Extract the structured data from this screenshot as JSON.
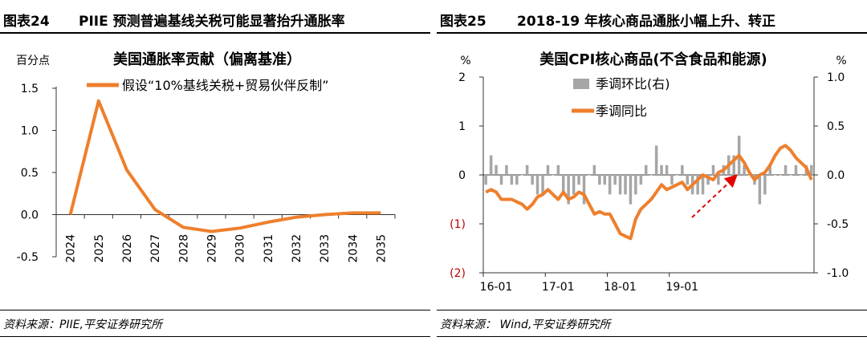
{
  "colors": {
    "line": "#ee7f2d",
    "bar": "#a6a6a6",
    "axis": "#333333",
    "negative_label": "#c00000",
    "arrow": "#e60000"
  },
  "figures": [
    {
      "label": "图表24",
      "title": "PIIE 预测普遍基线关税可能显著抬升通胀率",
      "source": "资料来源：PIIE,平安证券研究所"
    },
    {
      "label": "图表25",
      "title": "2018-19 年核心商品通胀小幅上升、转正",
      "source": "资料来源：   Wind,平安证券研究所"
    }
  ],
  "chart_data": [
    {
      "type": "line",
      "title": "美国通胀率贡献（偏离基准）",
      "ylabel": "百分点",
      "ylim": [
        -0.5,
        1.5
      ],
      "yticks": [
        "1.5",
        "1.0",
        "0.5",
        "0.0",
        "-0.5"
      ],
      "legend": "top-left",
      "categories": [
        "2024",
        "2025",
        "2026",
        "2027",
        "2028",
        "2029",
        "2030",
        "2031",
        "2032",
        "2033",
        "2034",
        "2035"
      ],
      "series": [
        {
          "name": "假设“10%基线关税+贸易伙伴反制”",
          "values": [
            0.0,
            1.35,
            0.53,
            0.06,
            -0.15,
            -0.2,
            -0.16,
            -0.09,
            -0.03,
            0.0,
            0.02,
            0.02
          ]
        }
      ]
    },
    {
      "type": "bar+line",
      "title": "美国CPI核心商品(不含食品和能源)",
      "ylabel_left": "%",
      "ylabel_right": "%",
      "ylim_left": [
        -2,
        2
      ],
      "ylim_right": [
        -1.0,
        1.0
      ],
      "yticks_left": [
        "2",
        "1",
        "0",
        "(1)",
        "(2)"
      ],
      "yticks_right": [
        "1.0",
        "0.5",
        "0.0",
        "-0.5",
        "-1.0"
      ],
      "xticks": [
        "16-01",
        "17-01",
        "18-01",
        "19-01"
      ],
      "legend": "top-center",
      "series": [
        {
          "name": "季调环比(右)",
          "type": "bar",
          "axis": "right",
          "values": [
            -0.1,
            0.2,
            0.1,
            -0.1,
            0.1,
            -0.1,
            -0.1,
            0.0,
            0.1,
            -0.1,
            -0.2,
            -0.2,
            0.1,
            0.0,
            0.1,
            -0.2,
            -0.3,
            -0.2,
            -0.1,
            -0.3,
            0.0,
            0.1,
            -0.1,
            -0.1,
            -0.2,
            -0.1,
            -0.2,
            -0.2,
            -0.3,
            -0.2,
            -0.1,
            0.1,
            0.0,
            0.3,
            0.1,
            0.1,
            -0.1,
            0.0,
            0.1,
            -0.1,
            -0.2,
            -0.2,
            -0.2,
            -0.1,
            0.1,
            -0.1,
            0.1,
            0.2,
            0.2,
            0.4,
            0.1,
            0.0,
            -0.1,
            -0.3,
            -0.2,
            0.1,
            0.0,
            0.0,
            0.1,
            0.0,
            0.1,
            0.0,
            0.1,
            0.1
          ]
        },
        {
          "name": "季调同比",
          "type": "line",
          "axis": "left",
          "values": [
            -0.35,
            -0.3,
            -0.35,
            -0.5,
            -0.5,
            -0.5,
            -0.55,
            -0.6,
            -0.7,
            -0.6,
            -0.45,
            -0.4,
            -0.3,
            -0.4,
            -0.5,
            -0.35,
            -0.5,
            -0.45,
            -0.35,
            -0.4,
            -0.6,
            -0.8,
            -0.75,
            -0.8,
            -0.8,
            -1.0,
            -1.2,
            -1.25,
            -1.3,
            -0.9,
            -0.7,
            -0.6,
            -0.5,
            -0.35,
            -0.2,
            -0.3,
            -0.25,
            -0.2,
            -0.15,
            -0.3,
            -0.2,
            -0.1,
            0.0,
            -0.05,
            -0.1,
            0.05,
            0.1,
            0.2,
            0.3,
            0.4,
            0.25,
            0.05,
            -0.1,
            0.0,
            0.05,
            0.2,
            0.4,
            0.55,
            0.6,
            0.5,
            0.35,
            0.25,
            0.15,
            -0.1
          ]
        }
      ]
    }
  ]
}
